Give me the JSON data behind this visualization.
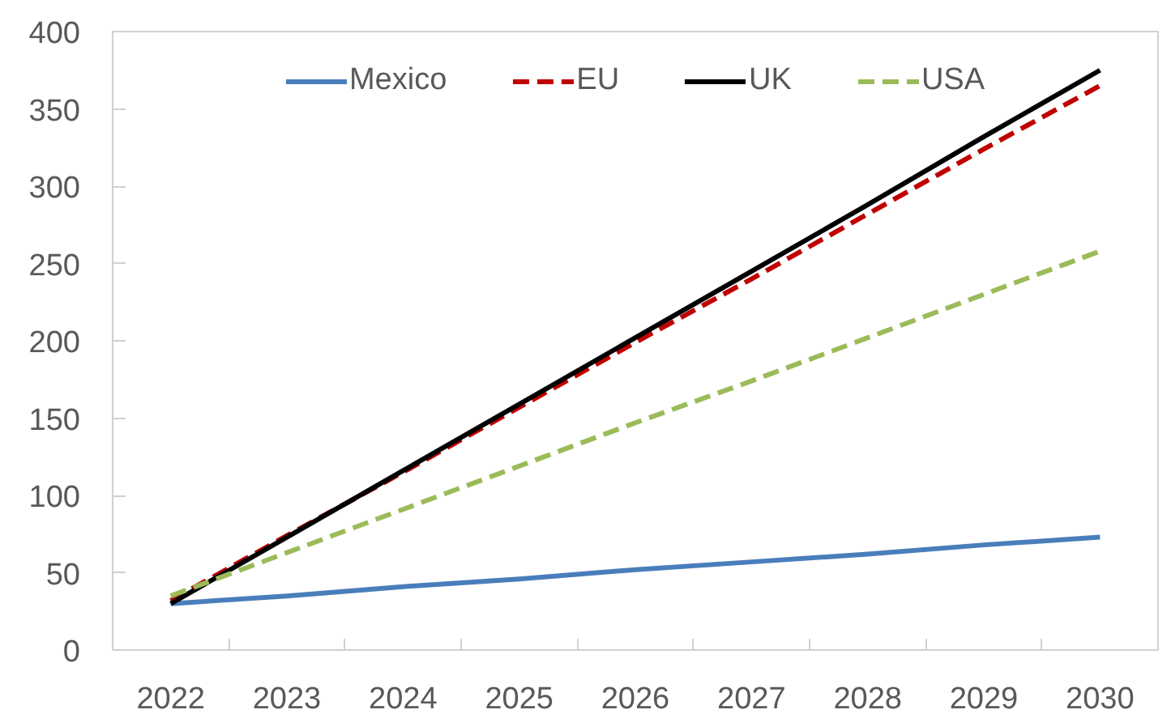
{
  "chart_data": {
    "type": "line",
    "categories": [
      "2022",
      "2023",
      "2024",
      "2025",
      "2026",
      "2027",
      "2028",
      "2029",
      "2030"
    ],
    "series": [
      {
        "name": "Mexico",
        "color": "#4a7ebb",
        "line_style": "solid",
        "values": [
          30,
          35,
          41,
          46,
          52,
          57,
          62,
          68,
          73
        ]
      },
      {
        "name": "EU",
        "color": "#c00000",
        "line_style": "dashed",
        "values": [
          32,
          74,
          115,
          157,
          199,
          240,
          282,
          324,
          365
        ]
      },
      {
        "name": "UK",
        "color": "#000000",
        "line_style": "solid",
        "values": [
          30,
          73,
          116,
          159,
          202,
          245,
          288,
          332,
          375
        ]
      },
      {
        "name": "USA",
        "color": "#9bbb59",
        "line_style": "dashed",
        "values": [
          35,
          63,
          91,
          119,
          147,
          174,
          202,
          230,
          258
        ]
      }
    ],
    "ylim": [
      0,
      400
    ],
    "yticks": [
      0,
      50,
      100,
      150,
      200,
      250,
      300,
      350,
      400
    ],
    "grid": false,
    "legend": "top"
  }
}
